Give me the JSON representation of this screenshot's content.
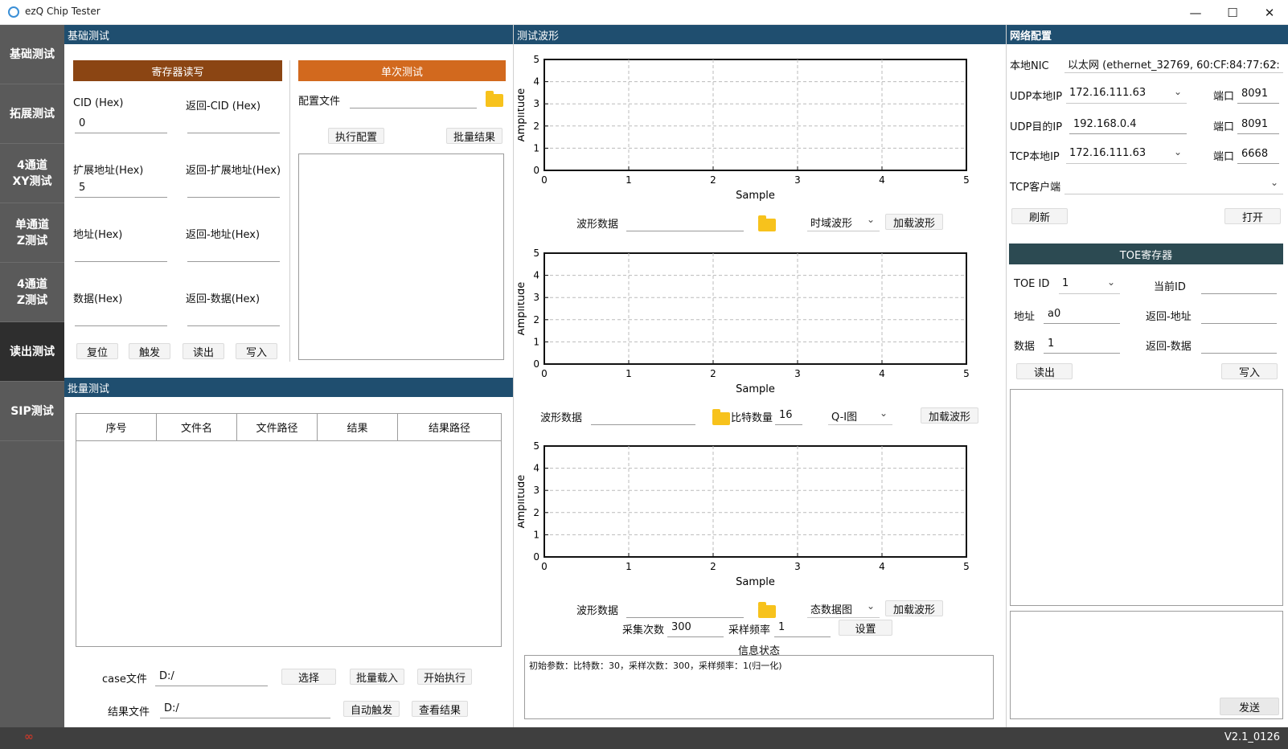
{
  "window": {
    "title": "ezQ Chip Tester",
    "minimize_icon": "minimize-icon",
    "maximize_icon": "maximize-icon",
    "close_icon": "close-icon"
  },
  "sidebar": {
    "items": [
      {
        "label": "基础测试",
        "active": false
      },
      {
        "label": "拓展测试",
        "active": false
      },
      {
        "label": "4通道\nXY测试",
        "active": false
      },
      {
        "label": "单通道\nZ测试",
        "active": false
      },
      {
        "label": "4通道\nZ测试",
        "active": false
      },
      {
        "label": "读出测试",
        "active": true
      },
      {
        "label": "SIP测试",
        "active": false
      }
    ]
  },
  "basic": {
    "header": "基础测试",
    "register_title": "寄存器读写",
    "cid_label": "CID (Hex)",
    "cid_value": "0",
    "ret_cid_label": "返回-CID (Hex)",
    "ret_cid_value": "",
    "ext_addr_label": "扩展地址(Hex)",
    "ext_addr_value": "5",
    "ret_ext_addr_label": "返回-扩展地址(Hex)",
    "ret_ext_addr_value": "",
    "addr_label": "地址(Hex)",
    "addr_value": "",
    "ret_addr_label": "返回-地址(Hex)",
    "ret_addr_value": "",
    "data_label": "数据(Hex)",
    "data_value": "",
    "ret_data_label": "返回-数据(Hex)",
    "ret_data_value": "",
    "buttons": {
      "reset": "复位",
      "trigger": "触发",
      "read": "读出",
      "write": "写入"
    },
    "single_title": "单次测试",
    "config_file_label": "配置文件",
    "config_file_value": "",
    "exec_config": "执行配置",
    "batch_result": "批量结果"
  },
  "batch": {
    "header": "批量测试",
    "columns": [
      "序号",
      "文件名",
      "文件路径",
      "结果",
      "结果路径"
    ],
    "rows": [],
    "case_file_label": "case文件",
    "case_file_value": "D:/",
    "select": "选择",
    "batch_load": "批量载入",
    "start": "开始执行",
    "result_file_label": "结果文件",
    "result_file_value": "D:/",
    "auto_trigger": "自动触发",
    "view_result": "查看结果"
  },
  "wave": {
    "header": "测试波形",
    "row1": {
      "label": "波形数据",
      "value": "",
      "mode": "时域波形",
      "load": "加载波形"
    },
    "row2": {
      "label": "波形数据",
      "value": "",
      "bits_label": "比特数量",
      "bits_value": "16",
      "mode": "Q-I图",
      "load": "加载波形"
    },
    "row3": {
      "label": "波形数据",
      "value": "",
      "mode": "态数据图",
      "load": "加载波形"
    },
    "sample_count_label": "采集次数",
    "sample_count_value": "300",
    "sample_rate_label": "采样频率",
    "sample_rate_value": "1",
    "set": "设置",
    "info_label": "信息状态",
    "info_text": "初始参数：比特数：30，采样次数：300，采样频率：1(归一化)"
  },
  "chart_data": [
    {
      "type": "line",
      "title": "",
      "xlabel": "Sample",
      "ylabel": "Amplitude",
      "xlim": [
        0,
        5
      ],
      "ylim": [
        0,
        5
      ],
      "xticks": [
        "0",
        "1",
        "2",
        "3",
        "4",
        "5"
      ],
      "yticks": [
        "0",
        "1",
        "2",
        "3",
        "4",
        "5"
      ],
      "grid": true,
      "series": []
    },
    {
      "type": "line",
      "title": "",
      "xlabel": "Sample",
      "ylabel": "Amplitude",
      "xlim": [
        0,
        5
      ],
      "ylim": [
        0,
        5
      ],
      "xticks": [
        "0",
        "1",
        "2",
        "3",
        "4",
        "5"
      ],
      "yticks": [
        "0",
        "1",
        "2",
        "3",
        "4",
        "5"
      ],
      "grid": true,
      "series": []
    },
    {
      "type": "line",
      "title": "",
      "xlabel": "Sample",
      "ylabel": "Amplitude",
      "xlim": [
        0,
        5
      ],
      "ylim": [
        0,
        5
      ],
      "xticks": [
        "0",
        "1",
        "2",
        "3",
        "4",
        "5"
      ],
      "yticks": [
        "0",
        "1",
        "2",
        "3",
        "4",
        "5"
      ],
      "grid": true,
      "series": []
    }
  ],
  "network": {
    "header": "网络配置",
    "nic_label": "本地NIC",
    "nic_value": "以太网 (ethernet_32769, 60:CF:84:77:62:",
    "udp_local_label": "UDP本地IP",
    "udp_local_value": "172.16.111.63",
    "udp_dest_label": "UDP目的IP",
    "udp_dest_value": "192.168.0.4",
    "tcp_local_label": "TCP本地IP",
    "tcp_local_value": "172.16.111.63",
    "port_label": "端口",
    "port1": "8091",
    "port2": "8091",
    "port3": "6668",
    "tcp_client_label": "TCP客户端",
    "tcp_client_value": "",
    "refresh": "刷新",
    "open": "打开",
    "toe_title": "TOE寄存器",
    "toe_id_label": "TOE ID",
    "toe_id_value": "1",
    "current_id_label": "当前ID",
    "current_id_value": "",
    "addr_label": "地址",
    "addr_value": "a0",
    "ret_addr_label": "返回-地址",
    "ret_addr_value": "",
    "data_label": "数据",
    "data_value": "1",
    "ret_data_label": "返回-数据",
    "ret_data_value": "",
    "read": "读出",
    "write": "写入",
    "send": "发送"
  },
  "footer": {
    "version": "V2.1_0126"
  }
}
